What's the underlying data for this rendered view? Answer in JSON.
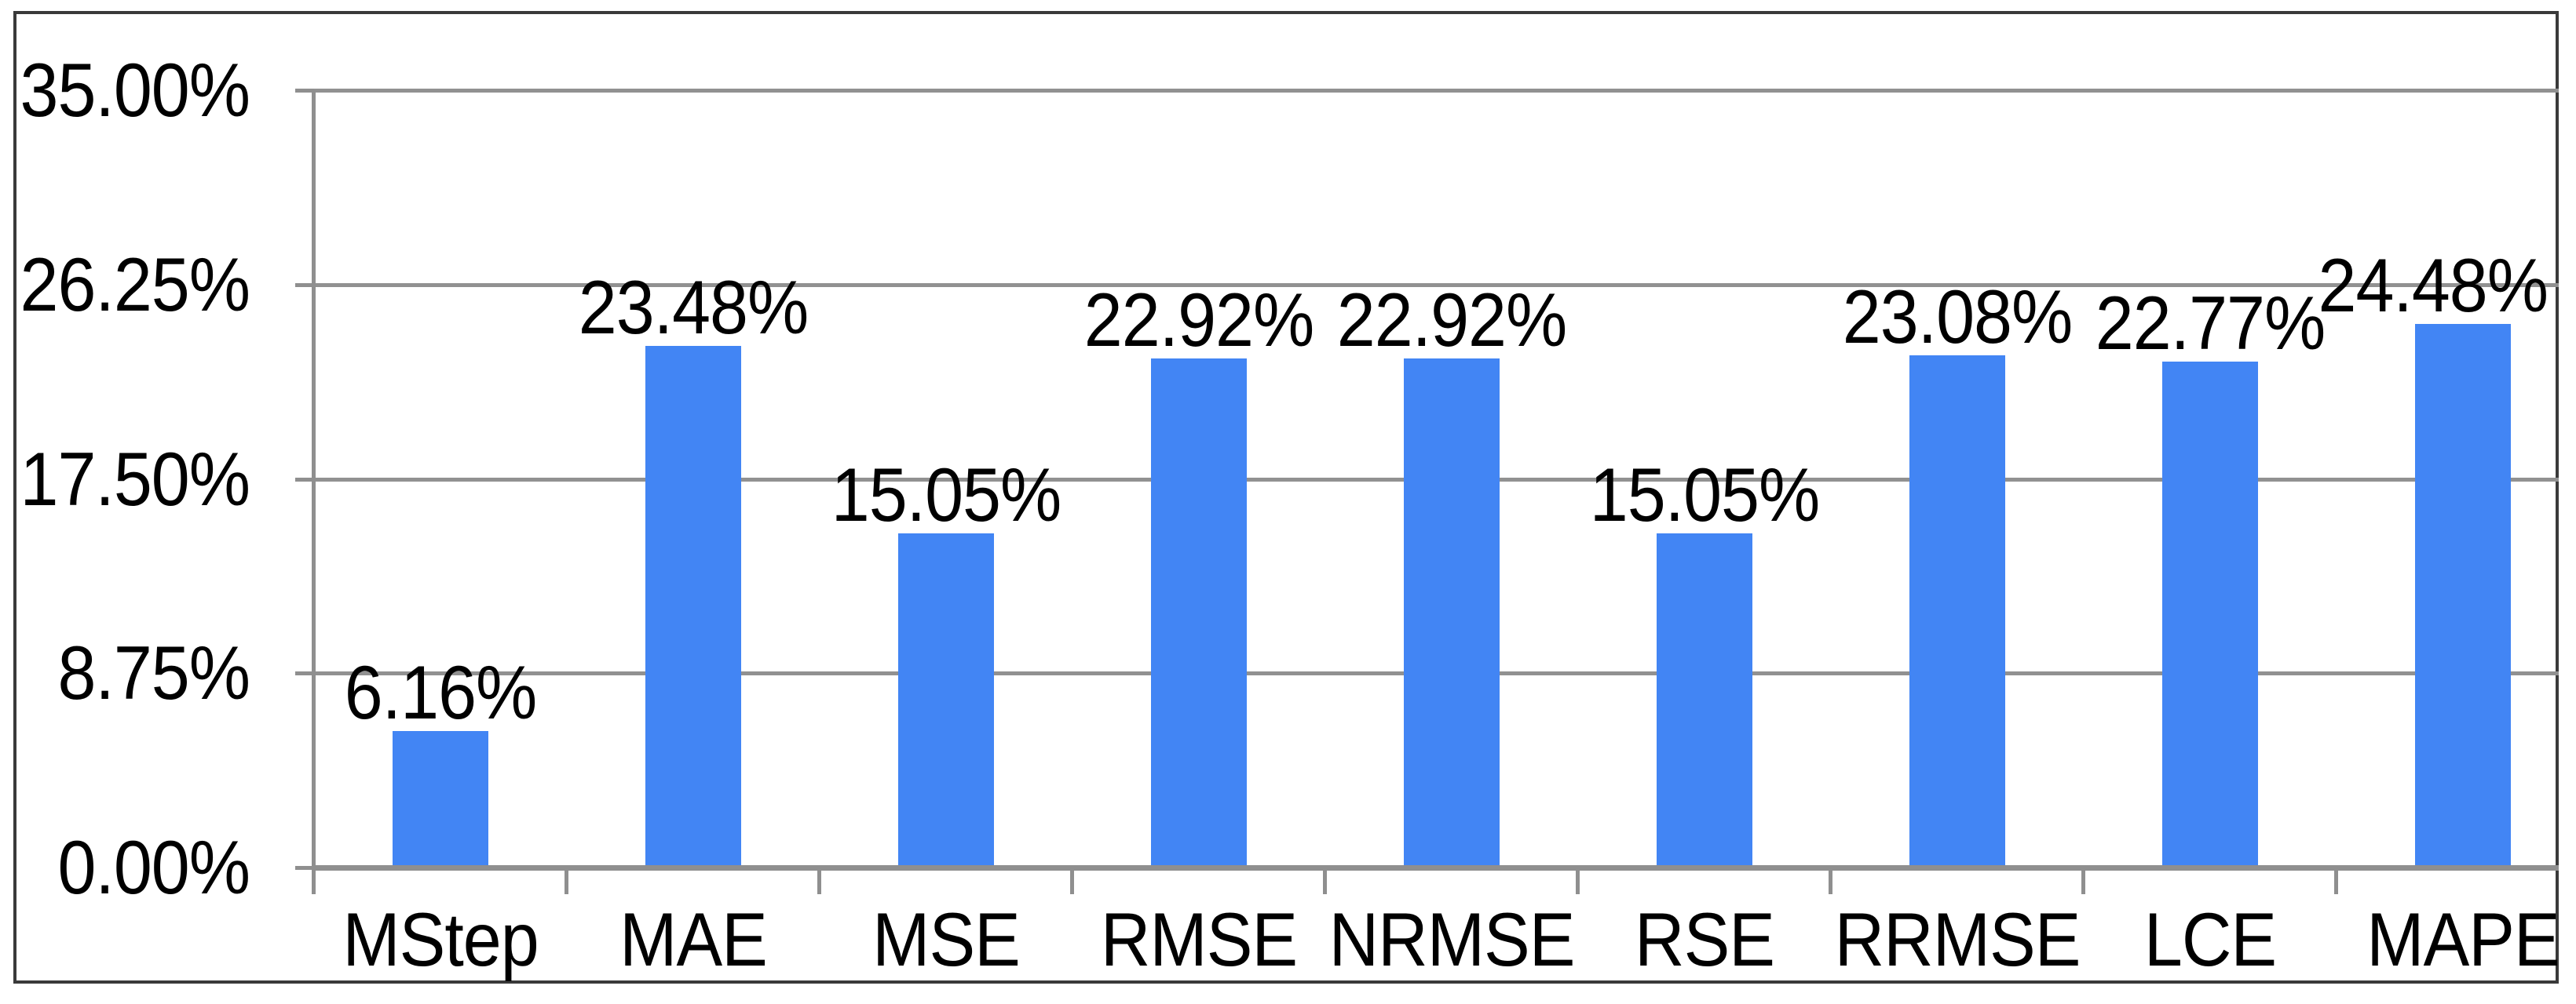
{
  "chart_data": {
    "type": "bar",
    "title": "",
    "xlabel": "",
    "ylabel": "",
    "categories": [
      "MStep",
      "MAE",
      "MSE",
      "RMSE",
      "NRMSE",
      "RSE",
      "RRMSE",
      "LCE",
      "MAPE"
    ],
    "values": [
      6.16,
      23.48,
      15.05,
      22.92,
      22.92,
      15.05,
      23.08,
      22.77,
      24.48
    ],
    "data_labels": [
      "6.16%",
      "23.48%",
      "15.05%",
      "22.92%",
      "22.92%",
      "15.05%",
      "23.08%",
      "22.77%",
      "24.48%"
    ],
    "y_ticks": [
      {
        "value": 0,
        "label": "0.00%"
      },
      {
        "value": 8.75,
        "label": "8.75%"
      },
      {
        "value": 17.5,
        "label": "17.50%"
      },
      {
        "value": 26.25,
        "label": "26.25%"
      },
      {
        "value": 35,
        "label": "35.00%"
      }
    ],
    "ylim": [
      0,
      35
    ],
    "grid": "horizontal",
    "legend": "none",
    "bar_color": "#4285f4",
    "grid_color": "#919191",
    "axis_color": "#8f8f8f",
    "frame_color": "#3a3a3a",
    "background": "#ffffff",
    "text_color": "#000000"
  }
}
